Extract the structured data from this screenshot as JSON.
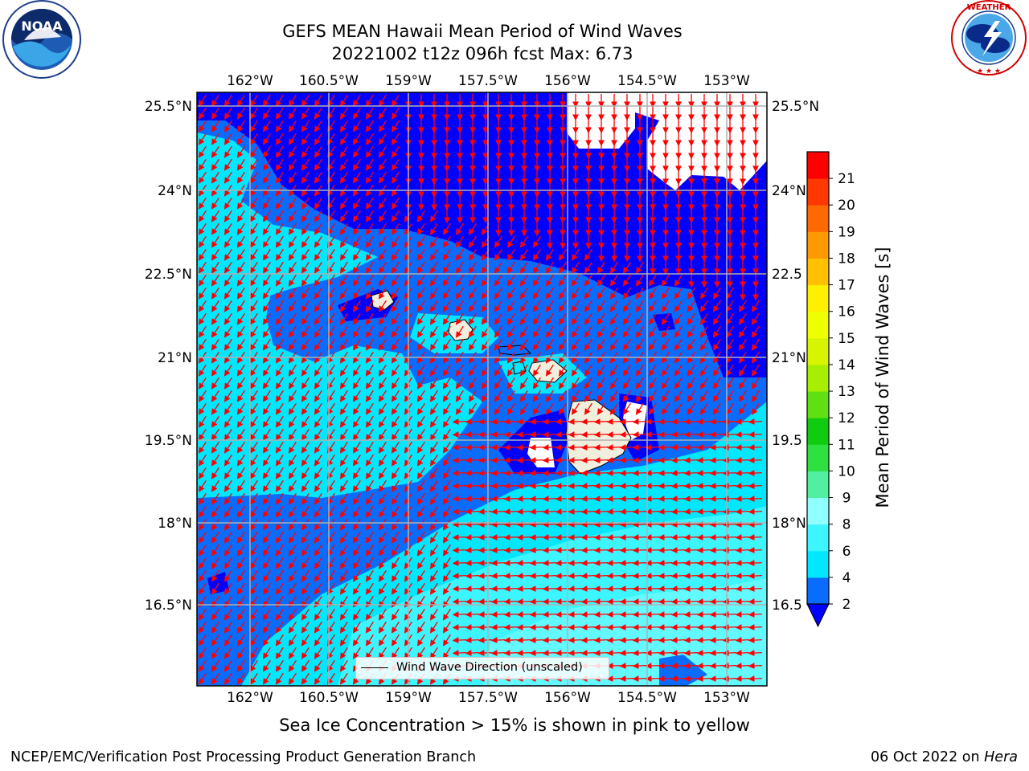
{
  "header": {
    "title_line1": "GEFS MEAN Hawaii Mean Period of Wind Waves",
    "title_line2": "20221002 t12z 096h fcst   Max: 6.73"
  },
  "logos": {
    "left": {
      "icon": "noaa-logo",
      "text": "NOAA",
      "ring_text": "NATIONAL OCEANIC AND ATMOSPHERIC ADMINISTRATION · U.S. DEPARTMENT OF COMMERCE"
    },
    "right": {
      "icon": "nws-logo",
      "ring_text": "NATIONAL WEATHER SERVICE"
    }
  },
  "map": {
    "lon_ticks": [
      "162°W",
      "160.5°W",
      "159°W",
      "157.5°W",
      "156°W",
      "154.5°W",
      "153°W"
    ],
    "lat_ticks": [
      "25.5°N",
      "24°N",
      "22.5°N",
      "21°N",
      "19.5°N",
      "18°N",
      "16.5°N"
    ],
    "right_lat_ticks": [
      "25.5°N",
      "24°N",
      "22.5",
      "21°N",
      "19.5",
      "18°N",
      "16.5"
    ],
    "legend_label": "Wind Wave Direction (unscaled)",
    "arrow_color": "#ff0000"
  },
  "colorbar": {
    "label": "Mean Period of Wind Waves [s]",
    "ticks": [
      "2",
      "4",
      "6",
      "8",
      "9",
      "10",
      "11",
      "12",
      "13",
      "14",
      "15",
      "16",
      "17",
      "18",
      "19",
      "20",
      "21"
    ],
    "colors": [
      "#0a6cff",
      "#00e8ff",
      "#3cf5ff",
      "#90ffff",
      "#50f0a0",
      "#2ee040",
      "#10cc10",
      "#60e010",
      "#a8ee00",
      "#d8f500",
      "#f0ff00",
      "#fff000",
      "#ffc000",
      "#ff9900",
      "#ff6a00",
      "#ff3800",
      "#ff0000"
    ],
    "under_color": "#0000ff"
  },
  "footer": {
    "subtitle": "Sea Ice Concentration > 15% is shown in pink to yellow",
    "left": "NCEP/EMC/Verification Post Processing Product Generation Branch",
    "right_prefix": "06 Oct 2022 on ",
    "right_host": "Hera"
  }
}
